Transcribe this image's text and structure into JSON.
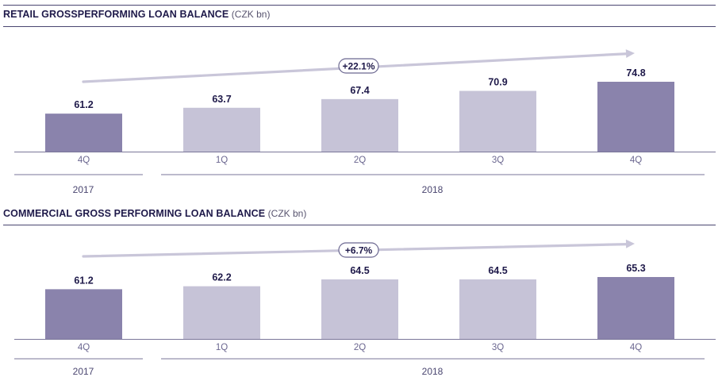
{
  "colors": {
    "dark_bar": "#8a83ac",
    "light_bar": "#c6c3d7",
    "arrow": "#c9c6d9",
    "text": "#1f1a4a",
    "rule": "#4a4670"
  },
  "charts": {
    "retail": {
      "title": "RETAIL GROSSPERFORMING LOAN BALANCE",
      "unit": "(CZK bn)",
      "growth": "+22.1%",
      "years": {
        "left": "2017",
        "right": "2018"
      }
    },
    "commercial": {
      "title": "COMMERCIAL GROSS PERFORMING LOAN BALANCE",
      "unit": "(CZK bn)",
      "growth": "+6.7%",
      "years": {
        "left": "2017",
        "right": "2018"
      }
    }
  },
  "chart_data": [
    {
      "type": "bar",
      "title": "RETAIL GROSSPERFORMING LOAN BALANCE (CZK bn)",
      "categories": [
        "4Q",
        "1Q",
        "2Q",
        "3Q",
        "4Q"
      ],
      "groups": [
        "2017",
        "2018",
        "2018",
        "2018",
        "2018"
      ],
      "values": [
        61.2,
        63.7,
        67.4,
        70.9,
        74.8
      ],
      "labels": [
        "61.2",
        "63.7",
        "67.4",
        "70.9",
        "74.8"
      ],
      "highlight": [
        true,
        false,
        false,
        false,
        true
      ],
      "annotation": "+22.1%",
      "ylim": [
        45,
        78
      ]
    },
    {
      "type": "bar",
      "title": "COMMERCIAL GROSS PERFORMING LOAN BALANCE (CZK bn)",
      "categories": [
        "4Q",
        "1Q",
        "2Q",
        "3Q",
        "4Q"
      ],
      "groups": [
        "2017",
        "2018",
        "2018",
        "2018",
        "2018"
      ],
      "values": [
        61.2,
        62.2,
        64.5,
        64.5,
        65.3
      ],
      "labels": [
        "61.2",
        "62.2",
        "64.5",
        "64.5",
        "65.3"
      ],
      "highlight": [
        true,
        false,
        false,
        false,
        true
      ],
      "annotation": "+6.7%",
      "ylim": [
        44.5,
        68.5
      ]
    }
  ]
}
